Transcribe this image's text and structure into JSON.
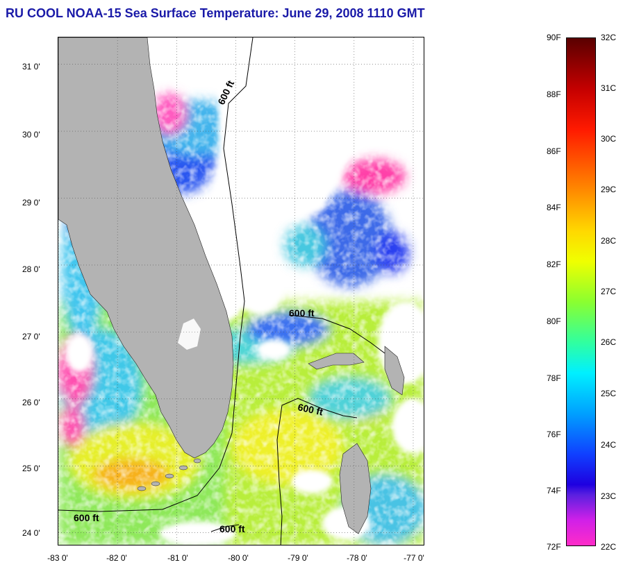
{
  "title": "RU COOL  NOAA-15  Sea Surface Temperature:  June 29, 2008 1110 GMT",
  "colors": {
    "title": "#1a1aa8",
    "land": "#b3b3b3",
    "cloud": "#ffffff",
    "grid": "#555555"
  },
  "map": {
    "lon_range": [
      -83,
      -76.8
    ],
    "lat_range": [
      23.8,
      31.4
    ],
    "y_ticks": [
      {
        "label": "31 0'",
        "value": 31
      },
      {
        "label": "30 0'",
        "value": 30
      },
      {
        "label": "29 0'",
        "value": 29
      },
      {
        "label": "28 0'",
        "value": 28
      },
      {
        "label": "27 0'",
        "value": 27
      },
      {
        "label": "26 0'",
        "value": 26
      },
      {
        "label": "25 0'",
        "value": 25
      },
      {
        "label": "24 0'",
        "value": 24
      }
    ],
    "x_ticks": [
      {
        "label": "-83 0'",
        "value": -83
      },
      {
        "label": "-82 0'",
        "value": -82
      },
      {
        "label": "-81 0'",
        "value": -81
      },
      {
        "label": "-80 0'",
        "value": -80
      },
      {
        "label": "-79 0'",
        "value": -79
      },
      {
        "label": "-78 0'",
        "value": -78
      },
      {
        "label": "-77 0'",
        "value": -77
      }
    ],
    "contour_labels": [
      "600 ft",
      "600 ft",
      "600 ft",
      "600 ft",
      "600 ft"
    ]
  },
  "colorbar": {
    "fahrenheit": [
      "90F",
      "88F",
      "86F",
      "84F",
      "82F",
      "80F",
      "78F",
      "76F",
      "74F",
      "72F"
    ],
    "celsius": [
      "32C",
      "31C",
      "30C",
      "29C",
      "28C",
      "27C",
      "26C",
      "25C",
      "24C",
      "23C",
      "22C"
    ],
    "range_f": [
      72,
      90
    ],
    "range_c": [
      22,
      32
    ]
  }
}
